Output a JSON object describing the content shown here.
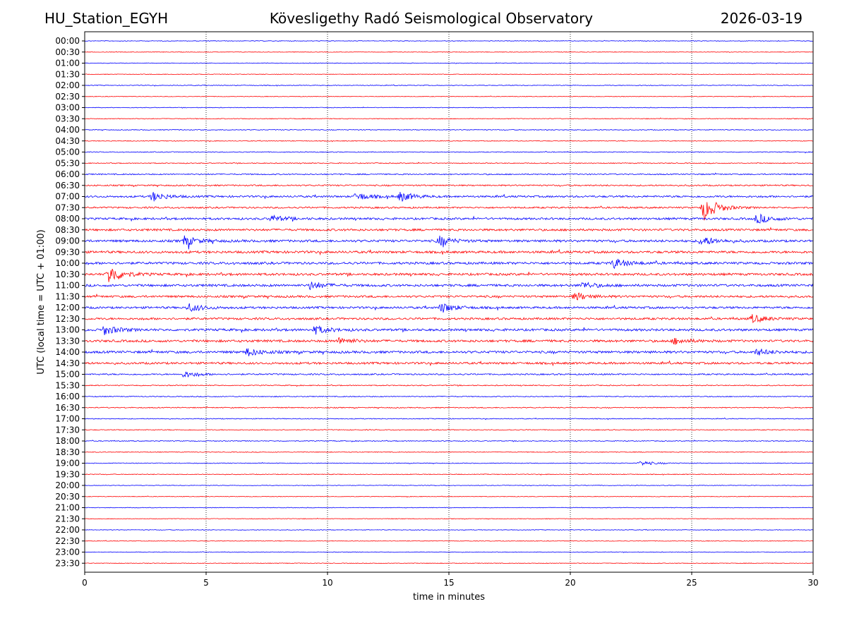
{
  "header": {
    "station": "HU_Station_EGYH",
    "observatory": "Kövesligethy Radó Seismological Observatory",
    "date": "2026-03-19"
  },
  "chart_data": {
    "type": "line",
    "title": "Kövesligethy Radó Seismological Observatory",
    "xlabel": "time in minutes",
    "ylabel": "UTC (local time = UTC + 01:00)",
    "xlim": [
      0,
      30
    ],
    "xticks": [
      0,
      5,
      10,
      15,
      20,
      25,
      30
    ],
    "grid": "vertical dotted at x ticks",
    "rows": [
      "00:00",
      "00:30",
      "01:00",
      "01:30",
      "02:00",
      "02:30",
      "03:00",
      "03:30",
      "04:00",
      "04:30",
      "05:00",
      "05:30",
      "06:00",
      "06:30",
      "07:00",
      "07:30",
      "08:00",
      "08:30",
      "09:00",
      "09:30",
      "10:00",
      "10:30",
      "11:00",
      "11:30",
      "12:00",
      "12:30",
      "13:00",
      "13:30",
      "14:00",
      "14:30",
      "15:00",
      "15:30",
      "16:00",
      "16:30",
      "17:00",
      "17:30",
      "18:00",
      "18:30",
      "19:00",
      "19:30",
      "20:00",
      "20:30",
      "21:00",
      "21:30",
      "22:00",
      "22:30",
      "23:00",
      "23:30"
    ],
    "row_colors": [
      "#0000ff",
      "#ff0000"
    ],
    "noise_level": [
      0.25,
      0.25,
      0.25,
      0.25,
      0.3,
      0.25,
      0.25,
      0.3,
      0.35,
      0.3,
      0.35,
      0.35,
      0.5,
      0.6,
      0.8,
      0.7,
      0.9,
      0.9,
      1.0,
      1.0,
      1.0,
      1.0,
      1.0,
      0.9,
      0.9,
      0.9,
      1.0,
      1.0,
      1.0,
      0.9,
      0.6,
      0.4,
      0.4,
      0.4,
      0.35,
      0.35,
      0.35,
      0.3,
      0.3,
      0.3,
      0.25,
      0.25,
      0.25,
      0.25,
      0.25,
      0.25,
      0.25,
      0.25
    ],
    "events": [
      {
        "row": 14,
        "minute": 2.8,
        "amplitude": 3.0
      },
      {
        "row": 14,
        "minute": 11.2,
        "amplitude": 2.5
      },
      {
        "row": 14,
        "minute": 13.0,
        "amplitude": 3.0
      },
      {
        "row": 15,
        "minute": 25.5,
        "amplitude": 8.0
      },
      {
        "row": 16,
        "minute": 7.7,
        "amplitude": 2.0
      },
      {
        "row": 16,
        "minute": 27.7,
        "amplitude": 3.0
      },
      {
        "row": 18,
        "minute": 4.1,
        "amplitude": 3.0
      },
      {
        "row": 18,
        "minute": 14.6,
        "amplitude": 3.0
      },
      {
        "row": 18,
        "minute": 25.4,
        "amplitude": 3.0
      },
      {
        "row": 20,
        "minute": 21.8,
        "amplitude": 3.0
      },
      {
        "row": 21,
        "minute": 1.0,
        "amplitude": 6.0
      },
      {
        "row": 22,
        "minute": 9.3,
        "amplitude": 2.5
      },
      {
        "row": 22,
        "minute": 20.5,
        "amplitude": 2.0
      },
      {
        "row": 23,
        "minute": 20.2,
        "amplitude": 2.5
      },
      {
        "row": 24,
        "minute": 4.3,
        "amplitude": 2.5
      },
      {
        "row": 24,
        "minute": 14.7,
        "amplitude": 3.0
      },
      {
        "row": 25,
        "minute": 27.5,
        "amplitude": 2.5
      },
      {
        "row": 26,
        "minute": 0.8,
        "amplitude": 3.0
      },
      {
        "row": 26,
        "minute": 9.5,
        "amplitude": 2.5
      },
      {
        "row": 27,
        "minute": 10.5,
        "amplitude": 2.0
      },
      {
        "row": 27,
        "minute": 24.3,
        "amplitude": 2.0
      },
      {
        "row": 28,
        "minute": 6.7,
        "amplitude": 2.5
      },
      {
        "row": 28,
        "minute": 27.7,
        "amplitude": 2.0
      },
      {
        "row": 30,
        "minute": 4.1,
        "amplitude": 2.0
      },
      {
        "row": 38,
        "minute": 22.9,
        "amplitude": 1.5
      }
    ]
  }
}
